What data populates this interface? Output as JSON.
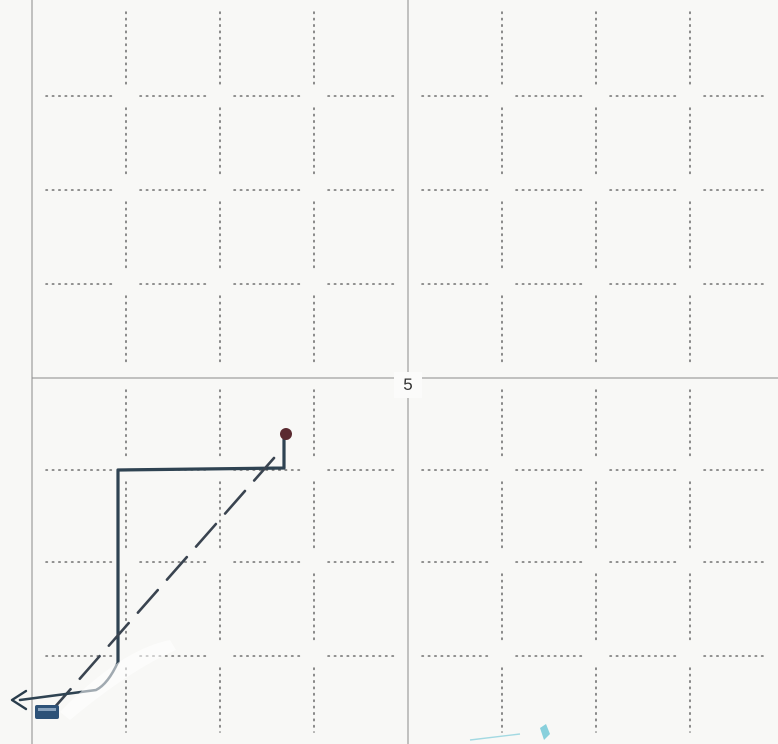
{
  "sheet": {
    "quadrant_label": "5"
  },
  "colors": {
    "paper": "#f8f8f6",
    "grid_solid": "#8a8a8a",
    "grid_dotted": "#6f6f6f",
    "ink_solid": "#2f4352",
    "ink_dashed": "#3a4450",
    "dot": "#5a2a30",
    "arrow": "#2a3d4c",
    "block": "#2d5278",
    "smudge": "#6cc6d6"
  }
}
